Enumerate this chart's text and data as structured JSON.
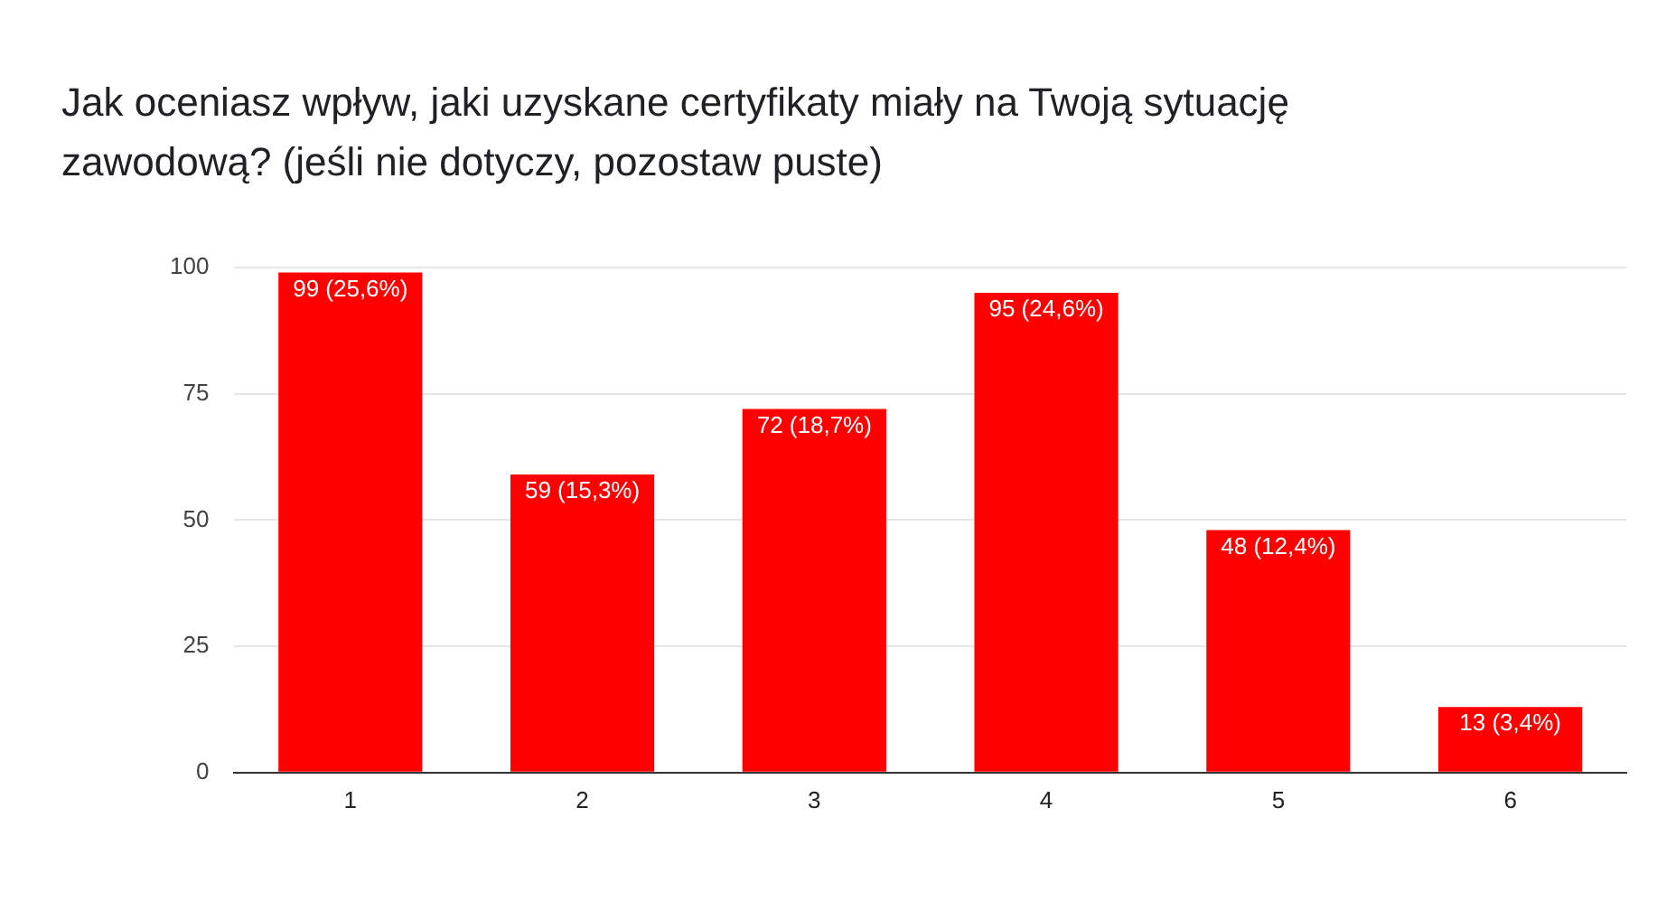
{
  "chart_data": {
    "type": "bar",
    "title": "Jak oceniasz wpływ, jaki uzyskane certyfikaty miały na Twoją sytuację zawodową? (jeśli nie dotyczy, pozostaw puste)",
    "categories": [
      "1",
      "2",
      "3",
      "4",
      "5",
      "6"
    ],
    "values": [
      99,
      59,
      72,
      95,
      48,
      13
    ],
    "value_labels": [
      "99 (25,6%)",
      "59 (15,3%)",
      "72 (18,7%)",
      "95 (24,6%)",
      "48 (12,4%)",
      "13 (3,4%)"
    ],
    "color": "#ff0000",
    "ylim": [
      0,
      100
    ],
    "yticks": [
      0,
      25,
      50,
      75,
      100
    ],
    "grid": "y"
  }
}
